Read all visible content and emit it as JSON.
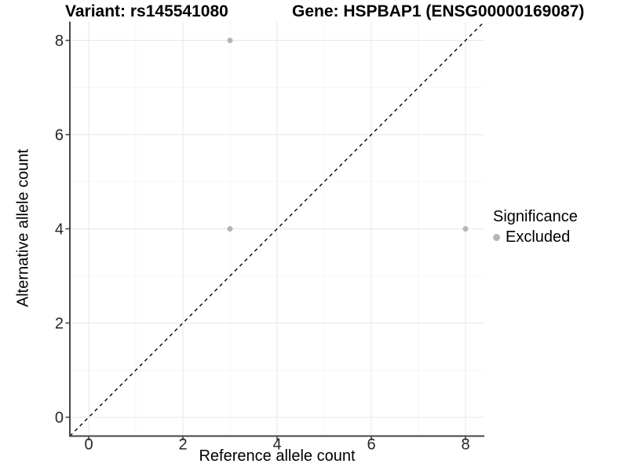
{
  "header": {
    "variant_title": "Variant: rs145541080",
    "gene_title": "Gene: HSPBAP1 (ENSG00000169087)"
  },
  "chart_data": {
    "type": "scatter",
    "title_left": "Variant: rs145541080",
    "title_right": "Gene: HSPBAP1 (ENSG00000169087)",
    "xlabel": "Reference allele count",
    "ylabel": "Alternative allele count",
    "xlim": [
      -0.4,
      8.4
    ],
    "ylim": [
      -0.4,
      8.4
    ],
    "x_ticks": [
      0,
      2,
      4,
      6,
      8
    ],
    "y_ticks": [
      0,
      2,
      4,
      6,
      8
    ],
    "x_minor_ticks": [
      1,
      3,
      5,
      7
    ],
    "y_minor_ticks": [
      1,
      3,
      5,
      7
    ],
    "grid": "major+minor",
    "identity_line": {
      "style": "dashed",
      "from": [
        -0.4,
        -0.4
      ],
      "to": [
        8.4,
        8.4
      ],
      "color": "#000000"
    },
    "series": [
      {
        "name": "Excluded",
        "color": "#b5b5b5",
        "points": [
          [
            3,
            8
          ],
          [
            3,
            4
          ],
          [
            8,
            4
          ]
        ]
      }
    ],
    "legend": {
      "title": "Significance",
      "position": "right",
      "items": [
        {
          "label": "Excluded",
          "color": "#b5b5b5"
        }
      ]
    },
    "colors": {
      "axis_line": "#464646",
      "grid_major": "#ebebeb",
      "grid_minor": "#f4f4f4",
      "tick_text": "#262626",
      "point": "#b5b5b5"
    }
  }
}
